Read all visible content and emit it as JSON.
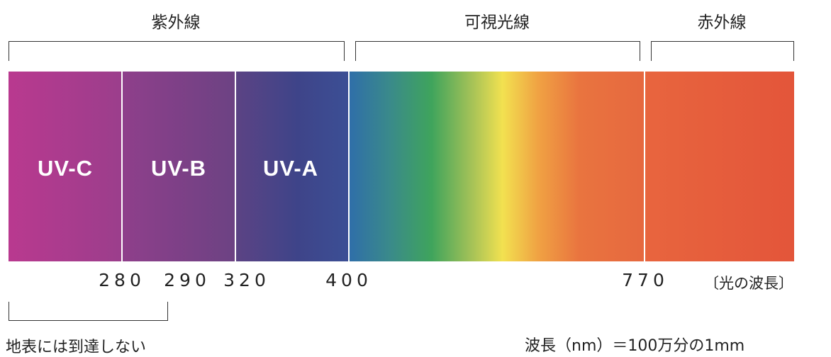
{
  "regions": {
    "uv": "紫外線",
    "visible": "可視光線",
    "infrared": "赤外線"
  },
  "bands": {
    "uvc": "UV-C",
    "uvb": "UV-B",
    "uva": "UV-A"
  },
  "ticks": {
    "t280": "280",
    "t290": "290",
    "t320": "320",
    "t400": "400",
    "t770": "770"
  },
  "axis_unit_label": "〔光の波長〕",
  "surface_note": "地表には到達しない",
  "wavelength_note": "波長（nm）＝100万分の1mm",
  "colors": {
    "uvc_start": "#b9398f",
    "uvb": "#7f4185",
    "uva": "#3f4488",
    "green": "#3fa45c",
    "yellow": "#f2e150",
    "orange": "#f0a243",
    "infrared": "#e3553a"
  }
}
